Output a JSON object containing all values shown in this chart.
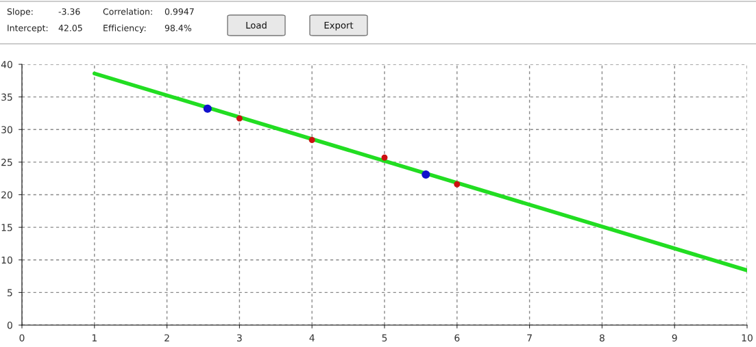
{
  "chart_data": {
    "type": "scatter",
    "annotations": [
      "Slope:",
      "-3.36",
      "Intercept:",
      "42.05",
      "Correlation:",
      "0.9947",
      "Efficiency:",
      "98.4%",
      "Load",
      "Export"
    ],
    "xlim": [
      0,
      10
    ],
    "xticks": [
      0,
      1,
      2,
      3,
      4,
      5,
      6,
      7,
      8,
      9,
      10
    ],
    "ylim": [
      0,
      40
    ],
    "yticks": [
      0,
      5,
      10,
      15,
      20,
      25,
      30,
      35,
      40
    ],
    "grid": true,
    "marker": "circle",
    "series": [
      {
        "type": "line",
        "color": "#22dd22",
        "x": [
          1,
          10
        ],
        "values": [
          38.6,
          8.4
        ],
        "marker": "none",
        "line_style": "solid"
      },
      {
        "color": "#cc1111",
        "x": [
          3,
          4,
          5,
          6
        ],
        "values": [
          31.7,
          28.4,
          25.7,
          21.6
        ]
      },
      {
        "color": "#1111cc",
        "x": [
          2.56,
          5.57
        ],
        "values": [
          33.2,
          23.1
        ]
      }
    ]
  }
}
